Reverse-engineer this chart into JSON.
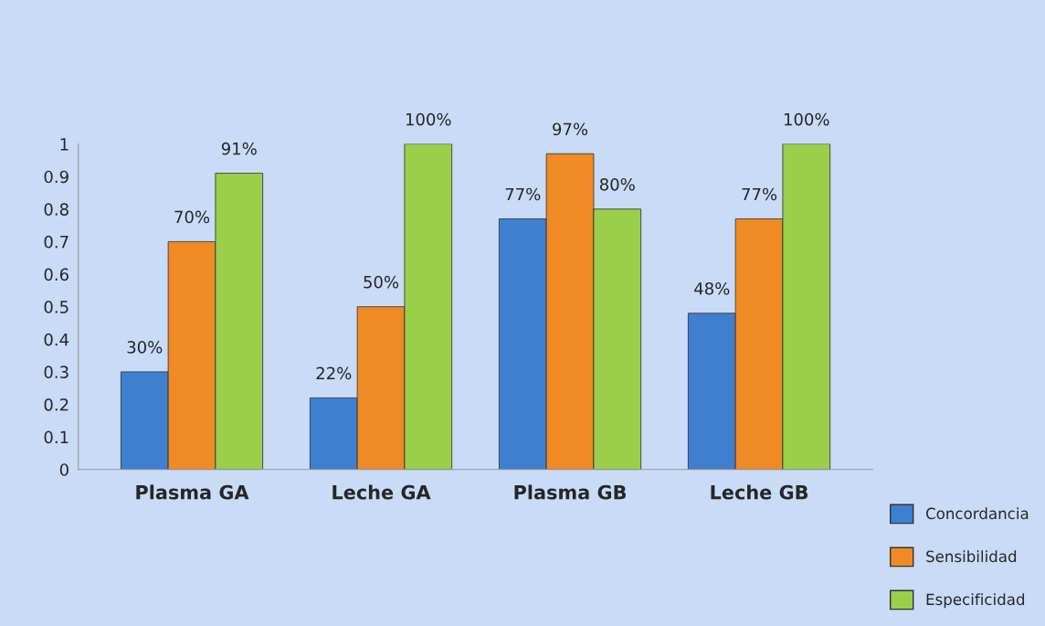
{
  "chart_data": {
    "type": "bar",
    "categories": [
      "Plasma GA",
      "Leche GA",
      "Plasma GB",
      "Leche GB"
    ],
    "series": [
      {
        "name": "Concordancia",
        "color": "#3f7fd0",
        "values": [
          0.3,
          0.22,
          0.77,
          0.48
        ],
        "value_labels": [
          "30%",
          "22%",
          "77%",
          "48%"
        ]
      },
      {
        "name": "Sensibilidad",
        "color": "#f08a24",
        "values": [
          0.7,
          0.5,
          0.97,
          0.77
        ],
        "value_labels": [
          "70%",
          "50%",
          "97%",
          "77%"
        ]
      },
      {
        "name": "Especificidad",
        "color": "#9bcf4a",
        "values": [
          0.91,
          1.0,
          0.8,
          1.0
        ],
        "value_labels": [
          "91%",
          "100%",
          "80%",
          "100%"
        ]
      }
    ],
    "ylim": [
      0,
      1
    ],
    "yticks": [
      0,
      0.1,
      0.2,
      0.3,
      0.4,
      0.5,
      0.6,
      0.7,
      0.8,
      0.9,
      1
    ],
    "grid": false,
    "legend": "bottom right"
  }
}
